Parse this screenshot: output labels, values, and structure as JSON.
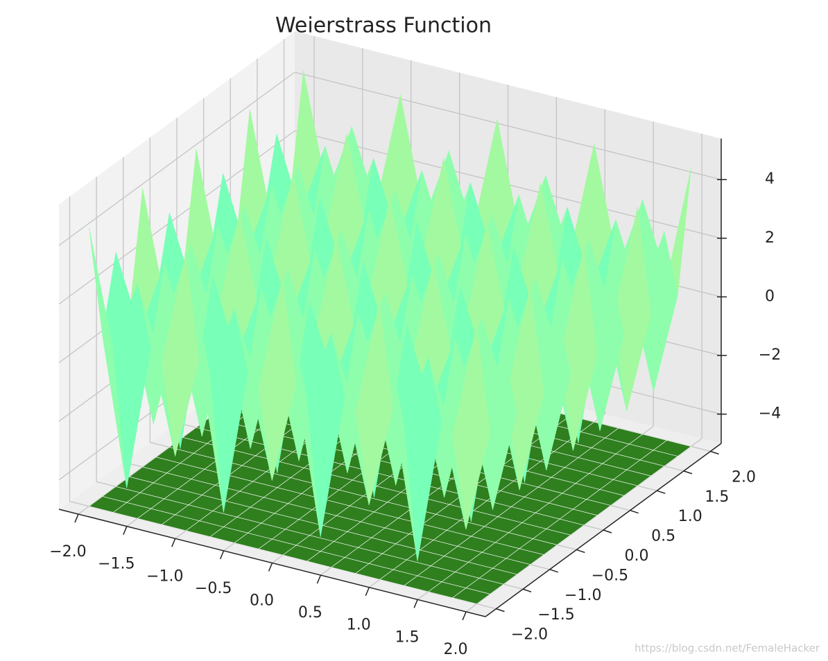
{
  "chart_data": {
    "type": "surface",
    "title": "Weierstrass Function",
    "colormap": "rainbow",
    "floor_color": "#2f7f1f",
    "pane_colors": [
      "#f2f2f2",
      "#e9e9e9",
      "#eeeeee"
    ],
    "grid": true,
    "x": [
      -2,
      -1.75,
      -1.5,
      -1.25,
      -1,
      -0.75,
      -0.5,
      -0.25,
      0,
      0.25,
      0.5,
      0.75,
      1,
      1.25,
      1.5,
      1.75,
      2
    ],
    "y": [
      -2,
      -1.75,
      -1.5,
      -1.25,
      -1,
      -0.75,
      -0.5,
      -0.25,
      0,
      0.25,
      0.5,
      0.75,
      1,
      1.25,
      1.5,
      1.75,
      2
    ],
    "z": [
      [
        4.5,
        0.5,
        3,
        0.5,
        4.5,
        0.5,
        3,
        0.5,
        4.5,
        0.5,
        3,
        0.5,
        4.5,
        0.5,
        3,
        0.5,
        4.5
      ],
      [
        0.5,
        -4.5,
        0.5,
        -3,
        0.5,
        -4.5,
        0.5,
        -3,
        0.5,
        -4.5,
        0.5,
        -3,
        0.5,
        -4.5,
        0.5,
        -3,
        0.5
      ],
      [
        3,
        0.5,
        3,
        0.5,
        3,
        0.5,
        3,
        0.5,
        3,
        0.5,
        3,
        0.5,
        3,
        0.5,
        3,
        0.5,
        3
      ],
      [
        0.5,
        -3,
        0.5,
        -3,
        0.5,
        -3,
        0.5,
        -3,
        0.5,
        -3,
        0.5,
        -3,
        0.5,
        -3,
        0.5,
        -3,
        0.5
      ],
      [
        4.5,
        0.5,
        3,
        0.5,
        4.5,
        0.5,
        3,
        0.5,
        4.5,
        0.5,
        3,
        0.5,
        4.5,
        0.5,
        3,
        0.5,
        4.5
      ],
      [
        0.5,
        -4.5,
        0.5,
        -3,
        0.5,
        -4.5,
        0.5,
        -3,
        0.5,
        -4.5,
        0.5,
        -3,
        0.5,
        -4.5,
        0.5,
        -3,
        0.5
      ],
      [
        3,
        0.5,
        3,
        0.5,
        3,
        0.5,
        3,
        0.5,
        3,
        0.5,
        3,
        0.5,
        3,
        0.5,
        3,
        0.5,
        3
      ],
      [
        0.5,
        -3,
        0.5,
        -3,
        0.5,
        -3,
        0.5,
        -3,
        0.5,
        -3,
        0.5,
        -3,
        0.5,
        -3,
        0.5,
        -3,
        0.5
      ],
      [
        4.5,
        0.5,
        3,
        0.5,
        4.5,
        0.5,
        3,
        0.5,
        4.5,
        0.5,
        3,
        0.5,
        4.5,
        0.5,
        3,
        0.5,
        4.5
      ],
      [
        0.5,
        -4.5,
        0.5,
        -3,
        0.5,
        -4.5,
        0.5,
        -3,
        0.5,
        -4.5,
        0.5,
        -3,
        0.5,
        -4.5,
        0.5,
        -3,
        0.5
      ],
      [
        3,
        0.5,
        3,
        0.5,
        3,
        0.5,
        3,
        0.5,
        3,
        0.5,
        3,
        0.5,
        3,
        0.5,
        3,
        0.5,
        3
      ],
      [
        0.5,
        -3,
        0.5,
        -3,
        0.5,
        -3,
        0.5,
        -3,
        0.5,
        -3,
        0.5,
        -3,
        0.5,
        -3,
        0.5,
        -3,
        0.5
      ],
      [
        4.5,
        0.5,
        3,
        0.5,
        4.5,
        0.5,
        3,
        0.5,
        4.5,
        0.5,
        3,
        0.5,
        4.5,
        0.5,
        3,
        0.5,
        4.5
      ],
      [
        0.5,
        -4.5,
        0.5,
        -3,
        0.5,
        -4.5,
        0.5,
        -3,
        0.5,
        -4.5,
        0.5,
        -3,
        0.5,
        -4.5,
        0.5,
        -3,
        0.5
      ],
      [
        3,
        0.5,
        3,
        0.5,
        3,
        0.5,
        3,
        0.5,
        3,
        0.5,
        3,
        0.5,
        3,
        0.5,
        3,
        0.5,
        3
      ],
      [
        0.5,
        -3,
        0.5,
        -3,
        0.5,
        -3,
        0.5,
        -3,
        0.5,
        -3,
        0.5,
        -3,
        0.5,
        -3,
        0.5,
        -3,
        0.5
      ],
      [
        4.5,
        0.5,
        3,
        0.5,
        4.5,
        0.5,
        3,
        0.5,
        4.5,
        0.5,
        3,
        0.5,
        4.5,
        0.5,
        3,
        0.5,
        4.5
      ]
    ],
    "xlim": [
      -2.2,
      2.2
    ],
    "ylim": [
      -2.2,
      2.2
    ],
    "zlim": [
      -5,
      5.4
    ],
    "xticks": [
      {
        "value": -2,
        "label": "−2.0"
      },
      {
        "value": -1.5,
        "label": "−1.5"
      },
      {
        "value": -1,
        "label": "−1.0"
      },
      {
        "value": -0.5,
        "label": "−0.5"
      },
      {
        "value": 0,
        "label": "0.0"
      },
      0.5,
      {
        "value": 1,
        "label": "1.0"
      },
      1.5,
      {
        "value": 2,
        "label": "2.0"
      }
    ],
    "yticks": [
      {
        "value": -2,
        "label": "−2.0"
      },
      {
        "value": -1.5,
        "label": "−1.5"
      },
      {
        "value": -1,
        "label": "−1.0"
      },
      {
        "value": -0.5,
        "label": "−0.5"
      },
      {
        "value": 0,
        "label": "0.0"
      },
      0.5,
      {
        "value": 1,
        "label": "1.0"
      },
      1.5,
      {
        "value": 2,
        "label": "2.0"
      }
    ],
    "zticks": [
      {
        "value": -4,
        "label": "−4"
      },
      {
        "value": -2,
        "label": "−2"
      },
      0,
      2,
      4
    ],
    "watermark": "https://blog.csdn.net/FemaleHacker"
  }
}
